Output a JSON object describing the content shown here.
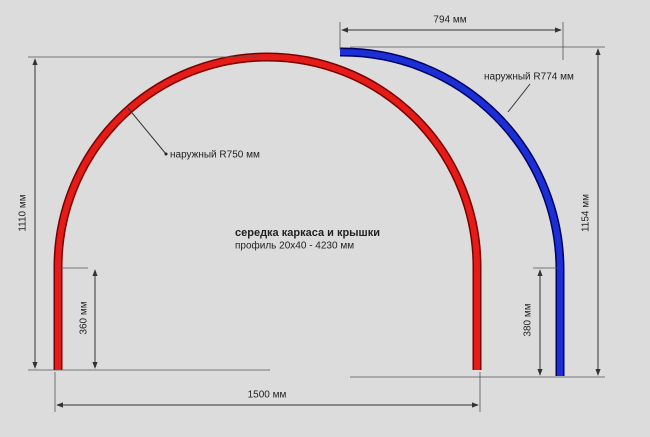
{
  "dimensions": {
    "width_top": "794 мм",
    "height_left": "1110 мм",
    "height_right": "1154 мм",
    "leg_left": "360 мм",
    "leg_right": "380 мм",
    "width_bottom": "1500 мм"
  },
  "annotations": {
    "radius_blue": "наружный R774 мм",
    "radius_red": "наружный R750 мм"
  },
  "caption": {
    "title": "середка каркаса и крышки",
    "subtitle": "профиль 20х40 - 4230 мм"
  }
}
